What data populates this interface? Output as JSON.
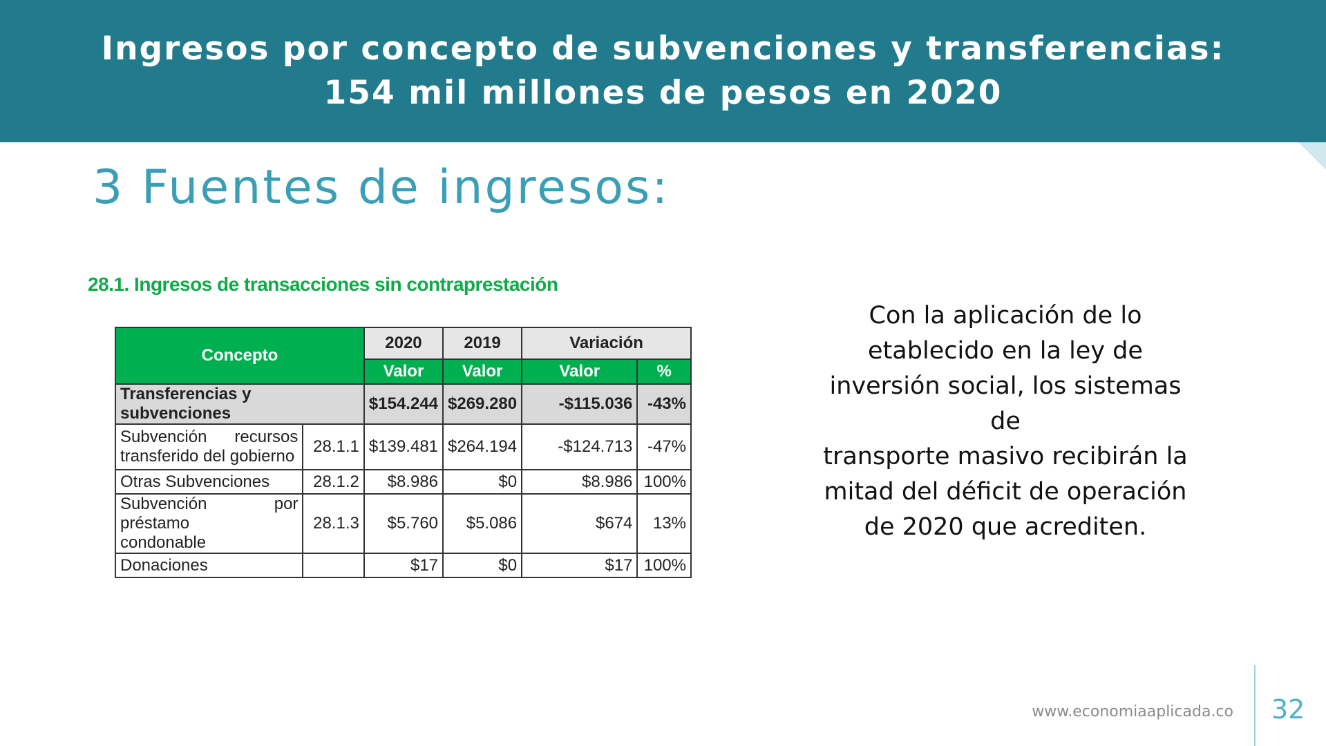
{
  "header": {
    "title_line1": "Ingresos por concepto de subvenciones y transferencias:",
    "title_line2": "154 mil millones de pesos en 2020"
  },
  "subtitle": "3 Fuentes de ingresos:",
  "table": {
    "caption": "28.1.  Ingresos de transacciones sin contraprestación",
    "headers": {
      "concepto": "Concepto",
      "year_2020": "2020",
      "year_2019": "2019",
      "variacion": "Variación",
      "valor": "Valor",
      "pct": "%"
    },
    "total": {
      "label": "Transferencias y subvenciones",
      "v2020": "$154.244",
      "v2019": "$269.280",
      "var": "-$115.036",
      "pct": "-43%"
    },
    "rows": [
      {
        "label_a": "Subvención recursos",
        "label_b": "transferido del gobierno",
        "code": "28.1.1",
        "v2020": "$139.481",
        "v2019": "$264.194",
        "var": "-$124.713",
        "pct": "-47%"
      },
      {
        "label_a": "Otras Subvenciones",
        "code": "28.1.2",
        "v2020": "$8.986",
        "v2019": "$0",
        "var": "$8.986",
        "pct": "100%"
      },
      {
        "label_a": "Subvención por préstamo",
        "label_b": "condonable",
        "code": "28.1.3",
        "v2020": "$5.760",
        "v2019": "$5.086",
        "var": "$674",
        "pct": "13%"
      },
      {
        "label_a": "Donaciones",
        "code": "",
        "v2020": "$17",
        "v2019": "$0",
        "var": "$17",
        "pct": "100%"
      }
    ]
  },
  "side_text": {
    "line1": "Con la aplicación de lo",
    "line2": "etablecido en la ley de",
    "line3": "inversión social, los sistemas de",
    "line4": "transporte masivo recibirán la",
    "line5": "mitad del déficit de operación",
    "line6": "de 2020 que acrediten."
  },
  "footer": {
    "url": "www.economiaaplicada.co",
    "page_number": "32"
  },
  "colors": {
    "header_bg": "#227a8d",
    "accent_teal": "#3a9fb6",
    "table_green": "#00b050",
    "caption_green": "#13a94a"
  }
}
